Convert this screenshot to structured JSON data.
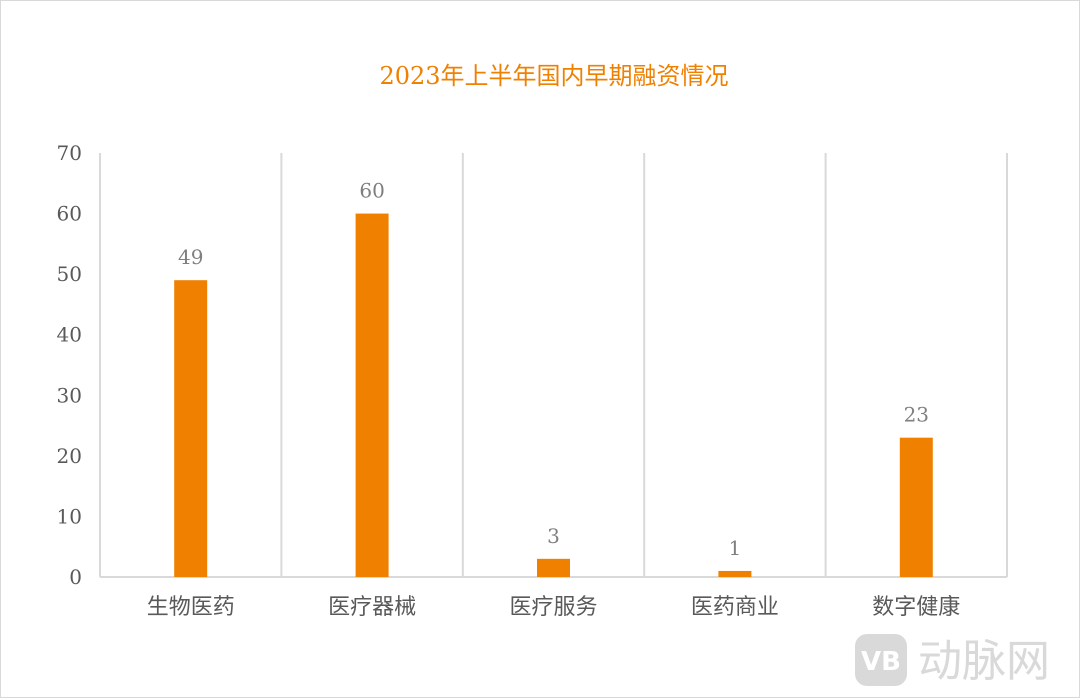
{
  "chart_data": {
    "type": "bar",
    "title": "2023年上半年国内早期融资情况",
    "categories": [
      "生物医药",
      "医疗器械",
      "医疗服务",
      "医药商业",
      "数字健康"
    ],
    "values": [
      49,
      60,
      3,
      1,
      23
    ],
    "data_labels": [
      "49",
      "60",
      "3",
      "1",
      "23"
    ],
    "xlabel": "",
    "ylabel": "",
    "ylim": [
      0,
      70
    ],
    "yticks": [
      "0",
      "10",
      "20",
      "30",
      "40",
      "50",
      "60",
      "70"
    ],
    "grid": "vertical category separators",
    "legend": "none",
    "colors": {
      "bar": "#f08000",
      "title": "#f08000",
      "grid": "#d9d9d9",
      "axis_text": "#595959",
      "data_label": "#7f7f7f"
    }
  },
  "watermark": {
    "text": "动脉网",
    "logo": "VB",
    "color": "#d9d9d9"
  }
}
